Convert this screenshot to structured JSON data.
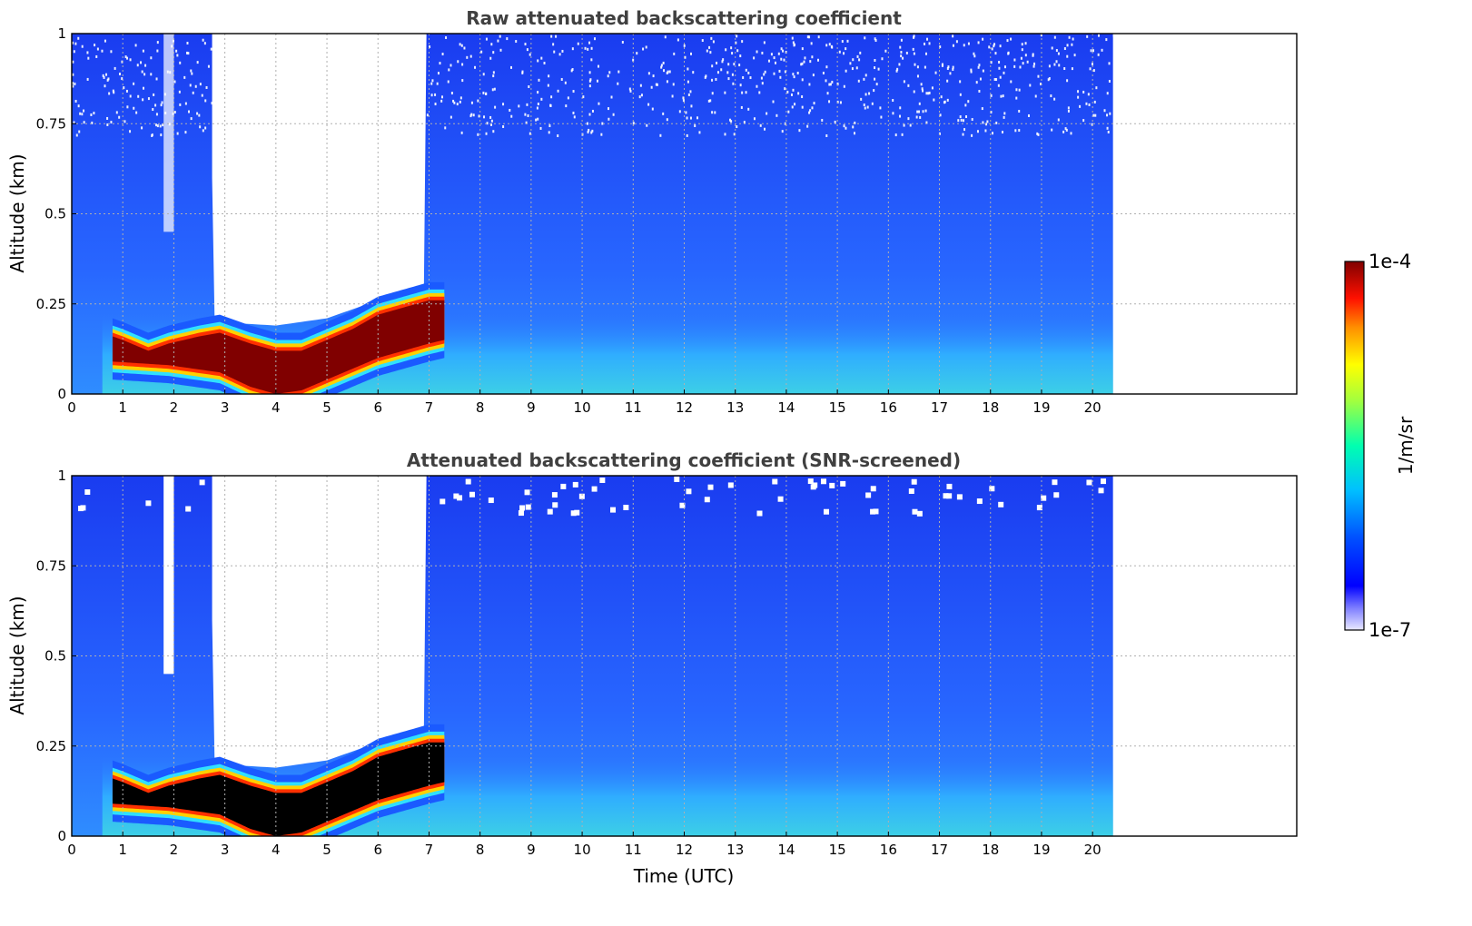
{
  "chart_data": [
    {
      "type": "heatmap",
      "title": "Raw attenuated backscattering coefficient",
      "xlabel": "",
      "ylabel": "Altitude (km)",
      "xlim": [
        0,
        24
      ],
      "ylim": [
        0,
        1
      ],
      "data_extent_x": [
        0,
        20.4
      ],
      "x_ticks": [
        "0",
        "1",
        "2",
        "3",
        "4",
        "5",
        "6",
        "7",
        "8",
        "9",
        "10",
        "11",
        "12",
        "13",
        "14",
        "15",
        "16",
        "17",
        "18",
        "19",
        "20"
      ],
      "y_ticks": [
        "0",
        "0.25",
        "0.5",
        "0.75",
        "1"
      ],
      "grid": true,
      "layer_top_km": [
        [
          0.8,
          0.16
        ],
        [
          1.0,
          0.15
        ],
        [
          1.5,
          0.12
        ],
        [
          1.9,
          0.14
        ],
        [
          2.5,
          0.16
        ],
        [
          2.9,
          0.17
        ],
        [
          3.5,
          0.14
        ],
        [
          4.0,
          0.12
        ],
        [
          4.5,
          0.12
        ],
        [
          5.0,
          0.15
        ],
        [
          5.5,
          0.18
        ],
        [
          6.0,
          0.22
        ],
        [
          6.5,
          0.24
        ],
        [
          7.0,
          0.26
        ],
        [
          7.3,
          0.26
        ]
      ],
      "layer_base_km": [
        [
          0.8,
          0.09
        ],
        [
          1.9,
          0.08
        ],
        [
          2.9,
          0.06
        ],
        [
          3.5,
          0.02
        ],
        [
          4.0,
          0.0
        ],
        [
          4.5,
          0.01
        ],
        [
          5.0,
          0.04
        ],
        [
          5.5,
          0.07
        ],
        [
          6.0,
          0.1
        ],
        [
          6.5,
          0.12
        ],
        [
          7.0,
          0.14
        ],
        [
          7.3,
          0.15
        ]
      ],
      "clear_region_top_km": [
        [
          2.8,
          0.2
        ],
        [
          4.0,
          0.19
        ],
        [
          5.0,
          0.21
        ],
        [
          6.0,
          0.26
        ],
        [
          6.9,
          0.3
        ]
      ],
      "colorbar": {
        "label": "1/m/sr",
        "min_label": "1e-7",
        "max_label": "1e-4",
        "scale": "log"
      }
    },
    {
      "type": "heatmap",
      "title": "Attenuated backscattering coefficient (SNR-screened)",
      "xlabel": "Time (UTC)",
      "ylabel": "Altitude (km)",
      "xlim": [
        0,
        24
      ],
      "ylim": [
        0,
        1
      ],
      "data_extent_x": [
        0,
        20.4
      ],
      "x_ticks": [
        "0",
        "1",
        "2",
        "3",
        "4",
        "5",
        "6",
        "7",
        "8",
        "9",
        "10",
        "11",
        "12",
        "13",
        "14",
        "15",
        "16",
        "17",
        "18",
        "19",
        "20"
      ],
      "y_ticks": [
        "0",
        "0.25",
        "0.5",
        "0.75",
        "1"
      ],
      "grid": true
    }
  ],
  "colors": {
    "background": "#ffffff",
    "low_signal": "#1133ff",
    "mid_signal": "#2ad0ff",
    "high_signal": "#7f0000",
    "saturated_screened": "#000000"
  }
}
